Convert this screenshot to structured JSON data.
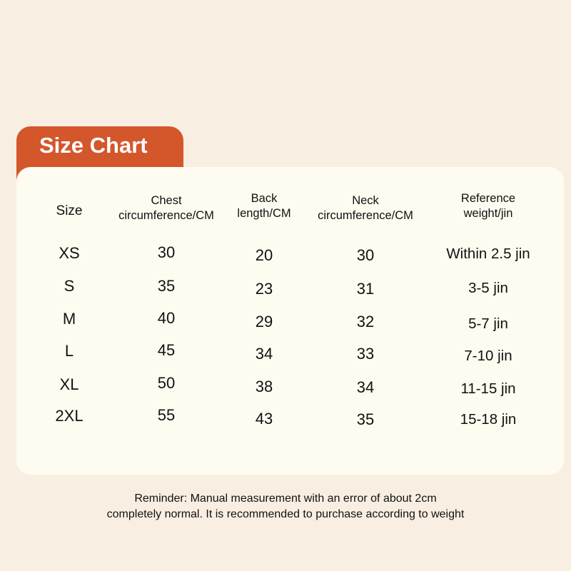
{
  "title": "Size Chart",
  "colors": {
    "background": "#f8efe2",
    "tab": "#d4562b",
    "card": "#fefcf0"
  },
  "headers": [
    "Size",
    "Chest circumference/CM",
    "Back length/CM",
    "Neck circumference/CM",
    "Reference weight/jin"
  ],
  "header_lines": [
    [
      "Size"
    ],
    [
      "Chest",
      "circumference/CM"
    ],
    [
      "Back",
      "length/CM"
    ],
    [
      "Neck",
      "circumference/CM"
    ],
    [
      "Reference",
      "weight/jin"
    ]
  ],
  "rows": [
    [
      "XS",
      "30",
      "20",
      "30",
      "Within 2.5 jin"
    ],
    [
      "S",
      "35",
      "23",
      "31",
      "3-5 jin"
    ],
    [
      "M",
      "40",
      "29",
      "32",
      "5-7 jin"
    ],
    [
      "L",
      "45",
      "34",
      "33",
      "7-10 jin"
    ],
    [
      "XL",
      "50",
      "38",
      "34",
      "11-15 jin"
    ],
    [
      "2XL",
      "55",
      "43",
      "35",
      "15-18 jin"
    ]
  ],
  "reminder": [
    "Reminder: Manual measurement with an error of about 2cm",
    "completely normal. It is recommended to purchase according to weight"
  ]
}
